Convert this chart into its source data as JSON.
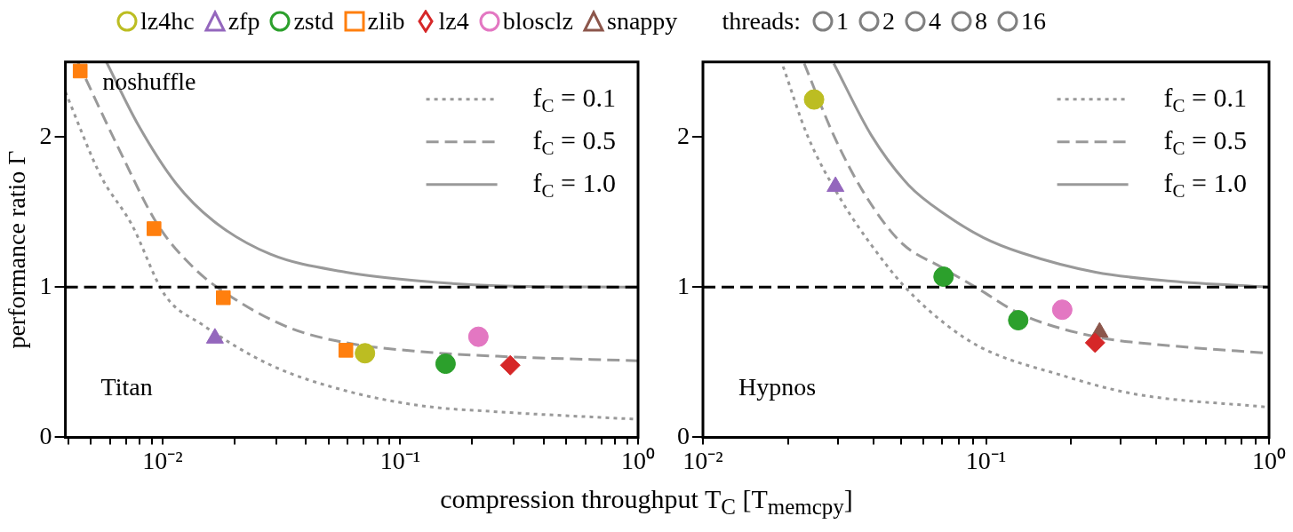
{
  "chart_data": [
    {
      "type": "scatter",
      "ylabel": "performance ratio Γ",
      "xlabel": "compression throughput T$_{C}$ [T$_{memcpy}$]",
      "legend_title": "threads:",
      "legend": "top right",
      "log": "x",
      "xlim": [
        0.0039,
        1
      ],
      "ylim": [
        0,
        2.5
      ],
      "xticks": [
        {
          "value": 0.004,
          "label": null
        },
        {
          "value": 0.005,
          "label": null
        },
        {
          "value": 0.006,
          "label": null
        },
        {
          "value": 0.007,
          "label": null
        },
        {
          "value": 0.008,
          "label": null
        },
        {
          "value": 0.009,
          "label": null
        },
        {
          "value": 0.01,
          "label": "10⁻²"
        },
        {
          "value": 0.02,
          "label": null
        },
        {
          "value": 0.03,
          "label": null
        },
        {
          "value": 0.04,
          "label": null
        },
        {
          "value": 0.05,
          "label": null
        },
        {
          "value": 0.06,
          "label": null
        },
        {
          "value": 0.07,
          "label": null
        },
        {
          "value": 0.08,
          "label": null
        },
        {
          "value": 0.09,
          "label": null
        },
        {
          "value": 0.1,
          "label": "10⁻¹"
        },
        {
          "value": 0.2,
          "label": null
        },
        {
          "value": 0.3,
          "label": null
        },
        {
          "value": 0.4,
          "label": null
        },
        {
          "value": 0.5,
          "label": null
        },
        {
          "value": 0.6,
          "label": null
        },
        {
          "value": 0.7,
          "label": null
        },
        {
          "value": 0.8,
          "label": null
        },
        {
          "value": 0.9,
          "label": null
        },
        {
          "value": 1,
          "label": "10⁰"
        }
      ],
      "yticks": [
        0,
        1,
        2
      ],
      "ref_lines": [
        {
          "axis": "y",
          "value": 1,
          "color": "#000000",
          "line_style": "dashed"
        }
      ],
      "annotations": [
        {
          "text": "noshuffle",
          "x": 0.0045,
          "y": 2.44
        },
        "Titan"
      ],
      "series": [
        {
          "name": "lz4hc",
          "color": "#bcbd22",
          "marker": "circle",
          "x": [
            0.071
          ],
          "values": [
            0.56
          ]
        },
        {
          "name": "zfp",
          "color": "#9467bd",
          "marker": "triangle",
          "x": [
            0.0166
          ],
          "values": [
            0.66
          ]
        },
        {
          "name": "zstd",
          "color": "#2ca02c",
          "marker": "circle",
          "x": [
            0.155
          ],
          "values": [
            0.49
          ]
        },
        {
          "name": "zlib",
          "color": "#ff7f0e",
          "marker": "square",
          "x": [
            0.0045,
            0.0092,
            0.018,
            0.059
          ],
          "values": [
            2.44,
            1.39,
            0.93,
            0.58
          ]
        },
        {
          "name": "lz4",
          "color": "#d62728",
          "marker": "diamond",
          "x": [
            0.29
          ],
          "values": [
            0.48
          ]
        },
        {
          "name": "blosclz",
          "color": "#e377c2",
          "marker": "circle",
          "x": [
            0.213
          ],
          "values": [
            0.67
          ]
        },
        {
          "name": "snappy",
          "color": "#8c564b",
          "marker": "triangle"
        },
        {
          "name": "1",
          "color": "#808080",
          "marker": "circle"
        },
        {
          "name": "2",
          "color": "#808080",
          "marker": "circle"
        },
        {
          "name": "4",
          "color": "#808080",
          "marker": "circle"
        },
        {
          "name": "8",
          "color": "#808080",
          "marker": "circle"
        },
        {
          "name": "16",
          "color": "#808080",
          "marker": "circle"
        },
        {
          "name": "f$_{C}$ = 0.1",
          "type": "line",
          "line_style": "dotted",
          "color": "#999999",
          "x": [
            0.0039,
            0.0055,
            0.0074,
            0.0102,
            0.0147,
            0.0286,
            0.059,
            0.123,
            0.256,
            1
          ],
          "values": [
            2.3,
            1.74,
            1.42,
            0.95,
            0.75,
            0.48,
            0.31,
            0.21,
            0.17,
            0.12
          ]
        },
        {
          "name": "f$_{C}$ = 0.5",
          "type": "line",
          "line_style": "dashed",
          "color": "#999999",
          "x": [
            0.0044,
            0.0066,
            0.0095,
            0.0137,
            0.0197,
            0.0341,
            0.059,
            0.123,
            0.256,
            1
          ],
          "values": [
            2.5,
            1.91,
            1.42,
            1.12,
            0.93,
            0.73,
            0.63,
            0.57,
            0.54,
            0.51
          ]
        },
        {
          "name": "f$_{C}$ = 1.0",
          "type": "line",
          "line_style": "solid",
          "color": "#999999",
          "x": [
            0.0058,
            0.0079,
            0.0114,
            0.0164,
            0.0284,
            0.059,
            0.123,
            0.256,
            1
          ],
          "values": [
            2.5,
            2.08,
            1.69,
            1.44,
            1.22,
            1.1,
            1.04,
            1.01,
            1.0
          ]
        }
      ]
    },
    {
      "type": "scatter",
      "legend": "top right",
      "log": "x",
      "xlim": [
        0.01,
        1
      ],
      "ylim": [
        0,
        2.5
      ],
      "xticks": [
        {
          "value": 0.01,
          "label": "10⁻²"
        },
        {
          "value": 0.02,
          "label": null
        },
        {
          "value": 0.03,
          "label": null
        },
        {
          "value": 0.04,
          "label": null
        },
        {
          "value": 0.05,
          "label": null
        },
        {
          "value": 0.06,
          "label": null
        },
        {
          "value": 0.07,
          "label": null
        },
        {
          "value": 0.08,
          "label": null
        },
        {
          "value": 0.09,
          "label": null
        },
        {
          "value": 0.1,
          "label": "10⁻¹"
        },
        {
          "value": 0.2,
          "label": null
        },
        {
          "value": 0.3,
          "label": null
        },
        {
          "value": 0.4,
          "label": null
        },
        {
          "value": 0.5,
          "label": null
        },
        {
          "value": 0.6,
          "label": null
        },
        {
          "value": 0.7,
          "label": null
        },
        {
          "value": 0.8,
          "label": null
        },
        {
          "value": 0.9,
          "label": null
        },
        {
          "value": 1,
          "label": "10⁰"
        }
      ],
      "yticks": [
        0,
        1,
        2
      ],
      "ref_lines": [
        {
          "axis": "y",
          "value": 1,
          "color": "#000000",
          "line_style": "dashed"
        }
      ],
      "annotations": [
        "Hypnos"
      ],
      "series": [
        {
          "color": "#bcbd22",
          "marker": "circle",
          "x": [
            0.0247
          ],
          "values": [
            2.25
          ]
        },
        {
          "color": "#9467bd",
          "marker": "triangle",
          "x": [
            0.0294
          ],
          "values": [
            1.67
          ]
        },
        {
          "color": "#2ca02c",
          "marker": "circle",
          "x": [
            0.0708,
            0.13
          ],
          "values": [
            1.07,
            0.78
          ]
        },
        {
          "color": "#d62728",
          "marker": "diamond",
          "x": [
            0.243
          ],
          "values": [
            0.63
          ]
        },
        {
          "color": "#e377c2",
          "marker": "circle",
          "x": [
            0.186
          ],
          "values": [
            0.85
          ]
        },
        {
          "color": "#8c564b",
          "marker": "triangle",
          "x": [
            0.252
          ],
          "values": [
            0.7
          ]
        },
        {
          "name": "f$_{C}$ = 0.1",
          "type": "line",
          "line_style": "dotted",
          "color": "#999999",
          "x": [
            0.0192,
            0.0234,
            0.0308,
            0.0394,
            0.0518,
            0.0724,
            0.098,
            0.18,
            0.332,
            1
          ],
          "values": [
            2.47,
            2.01,
            1.58,
            1.28,
            1.0,
            0.75,
            0.59,
            0.42,
            0.29,
            0.2
          ]
        },
        {
          "name": "f$_{C}$ = 0.5",
          "type": "line",
          "line_style": "dashed",
          "color": "#999999",
          "x": [
            0.0228,
            0.029,
            0.037,
            0.05,
            0.07,
            0.092,
            0.133,
            0.244,
            0.45,
            1
          ],
          "values": [
            2.49,
            2.01,
            1.63,
            1.3,
            1.13,
            1.0,
            0.82,
            0.67,
            0.61,
            0.56
          ]
        },
        {
          "name": "f$_{C}$ = 1.0",
          "type": "line",
          "line_style": "solid",
          "color": "#999999",
          "x": [
            0.029,
            0.0394,
            0.0533,
            0.0724,
            0.098,
            0.133,
            0.244,
            0.45,
            1
          ],
          "values": [
            2.49,
            2.01,
            1.68,
            1.48,
            1.33,
            1.23,
            1.1,
            1.04,
            1.0
          ]
        }
      ]
    }
  ]
}
